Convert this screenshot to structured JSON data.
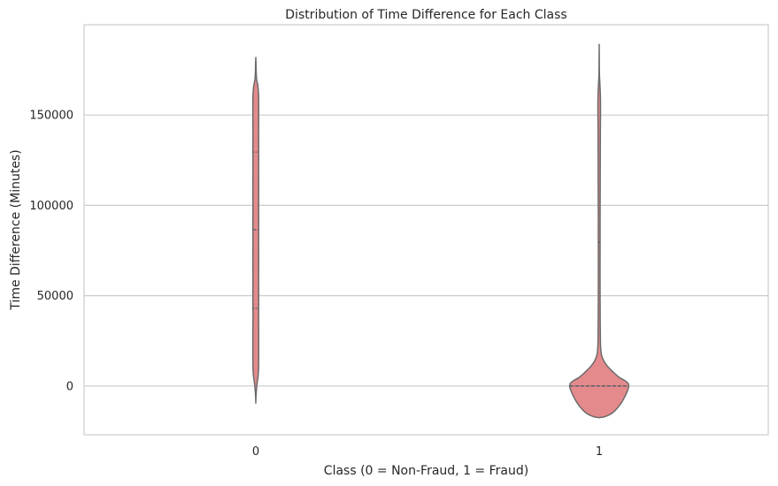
{
  "chart_data": {
    "type": "violin",
    "title": "Distribution of Time Difference for Each Class",
    "xlabel": "Class (0 = Non-Fraud, 1 = Fraud)",
    "ylabel": "Time Difference (Minutes)",
    "categories": [
      "0",
      "1"
    ],
    "yticks": [
      0,
      50000,
      100000,
      150000
    ],
    "ytick_labels": [
      "0",
      "50000",
      "100000",
      "150000"
    ],
    "ylim": [
      -27000,
      200000
    ],
    "grid": "horizontal",
    "fill_color": "#e48a8c",
    "edge_color": "#6b6b6b",
    "quartile_color": "#555d66",
    "violins": [
      {
        "category": "0",
        "quartiles": [
          43000,
          86500,
          129500
        ],
        "profile": [
          [
            -9500,
            0.0
          ],
          [
            -7000,
            0.012
          ],
          [
            -4000,
            0.04
          ],
          [
            0,
            0.1
          ],
          [
            3000,
            0.17
          ],
          [
            6000,
            0.24
          ],
          [
            10000,
            0.28
          ],
          [
            15000,
            0.29
          ],
          [
            25000,
            0.29
          ],
          [
            32000,
            0.29
          ],
          [
            38000,
            0.28
          ],
          [
            43000,
            0.285
          ],
          [
            50000,
            0.29
          ],
          [
            60000,
            0.285
          ],
          [
            70000,
            0.29
          ],
          [
            80000,
            0.285
          ],
          [
            90000,
            0.29
          ],
          [
            100000,
            0.285
          ],
          [
            110000,
            0.29
          ],
          [
            120000,
            0.285
          ],
          [
            130000,
            0.29
          ],
          [
            140000,
            0.285
          ],
          [
            150000,
            0.29
          ],
          [
            160000,
            0.285
          ],
          [
            164000,
            0.25
          ],
          [
            167000,
            0.18
          ],
          [
            170000,
            0.08
          ],
          [
            174000,
            0.04
          ],
          [
            178000,
            0.025
          ],
          [
            181500,
            0.0
          ]
        ]
      },
      {
        "category": "1",
        "quartiles": [
          0,
          0,
          79500
        ],
        "profile": [
          [
            -17500,
            0.0
          ],
          [
            -17000,
            0.55
          ],
          [
            -15000,
            1.3
          ],
          [
            -12000,
            1.85
          ],
          [
            -9000,
            2.25
          ],
          [
            -6000,
            2.55
          ],
          [
            -3000,
            2.8
          ],
          [
            -1000,
            2.92
          ],
          [
            0,
            2.95
          ],
          [
            1500,
            2.88
          ],
          [
            3000,
            2.55
          ],
          [
            5000,
            1.95
          ],
          [
            8000,
            1.35
          ],
          [
            11000,
            0.82
          ],
          [
            14000,
            0.45
          ],
          [
            17000,
            0.24
          ],
          [
            20000,
            0.16
          ],
          [
            25000,
            0.12
          ],
          [
            35000,
            0.1
          ],
          [
            50000,
            0.09
          ],
          [
            65000,
            0.085
          ],
          [
            80000,
            0.09
          ],
          [
            95000,
            0.09
          ],
          [
            110000,
            0.1
          ],
          [
            125000,
            0.105
          ],
          [
            140000,
            0.115
          ],
          [
            152000,
            0.13
          ],
          [
            160000,
            0.12
          ],
          [
            166000,
            0.08
          ],
          [
            172000,
            0.025
          ],
          [
            178000,
            0.012
          ],
          [
            183000,
            0.008
          ],
          [
            188500,
            0.0
          ]
        ]
      }
    ]
  }
}
